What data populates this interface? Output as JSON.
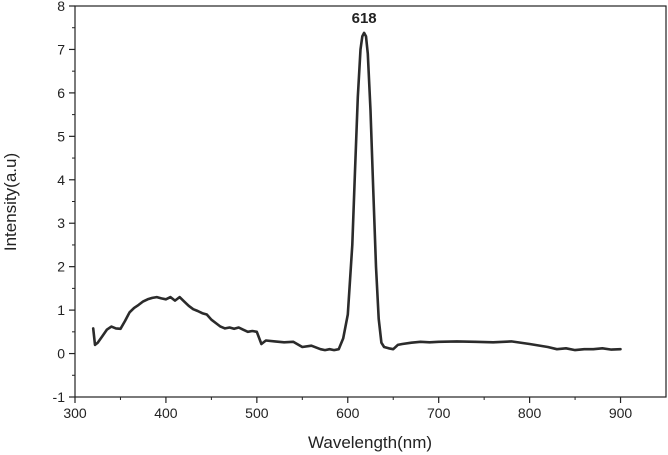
{
  "chart_data": {
    "type": "line",
    "title": "",
    "xlabel": "Wavelength(nm)",
    "ylabel": "Intensity(a.u)",
    "xlim": [
      300,
      950
    ],
    "ylim": [
      -1,
      8
    ],
    "x_ticks": [
      300,
      400,
      500,
      600,
      700,
      800,
      900
    ],
    "y_ticks": [
      -1,
      0,
      1,
      2,
      3,
      4,
      5,
      6,
      7,
      8
    ],
    "grid": false,
    "legend": "none",
    "line_color": "#2b2b2b",
    "annotations": [
      {
        "text": "618",
        "x": 618,
        "y": 7.38
      }
    ],
    "series": [
      {
        "x": [
          320,
          322,
          325,
          330,
          335,
          340,
          345,
          350,
          355,
          360,
          365,
          370,
          375,
          380,
          385,
          390,
          395,
          400,
          405,
          410,
          415,
          420,
          425,
          430,
          435,
          440,
          445,
          450,
          455,
          460,
          465,
          470,
          475,
          480,
          485,
          490,
          495,
          500,
          505,
          510,
          520,
          530,
          540,
          550,
          560,
          570,
          575,
          580,
          585,
          590,
          595,
          600,
          605,
          608,
          611,
          614,
          616,
          618,
          620,
          622,
          625,
          628,
          631,
          634,
          637,
          640,
          645,
          650,
          655,
          660,
          670,
          680,
          690,
          700,
          720,
          740,
          760,
          780,
          800,
          820,
          830,
          840,
          850,
          860,
          870,
          880,
          890,
          900
        ],
        "y": [
          0.58,
          0.2,
          0.25,
          0.4,
          0.55,
          0.62,
          0.58,
          0.57,
          0.75,
          0.95,
          1.05,
          1.12,
          1.2,
          1.25,
          1.28,
          1.3,
          1.27,
          1.25,
          1.3,
          1.22,
          1.3,
          1.2,
          1.1,
          1.02,
          0.98,
          0.93,
          0.9,
          0.78,
          0.7,
          0.62,
          0.58,
          0.6,
          0.57,
          0.6,
          0.55,
          0.5,
          0.52,
          0.5,
          0.22,
          0.3,
          0.28,
          0.26,
          0.27,
          0.15,
          0.18,
          0.1,
          0.08,
          0.1,
          0.08,
          0.1,
          0.35,
          0.9,
          2.5,
          4.2,
          5.9,
          7.0,
          7.3,
          7.38,
          7.3,
          6.9,
          5.6,
          3.8,
          2.0,
          0.8,
          0.25,
          0.15,
          0.12,
          0.1,
          0.2,
          0.22,
          0.25,
          0.27,
          0.26,
          0.27,
          0.28,
          0.27,
          0.26,
          0.28,
          0.22,
          0.15,
          0.1,
          0.12,
          0.08,
          0.1,
          0.1,
          0.12,
          0.09,
          0.1
        ]
      }
    ]
  }
}
